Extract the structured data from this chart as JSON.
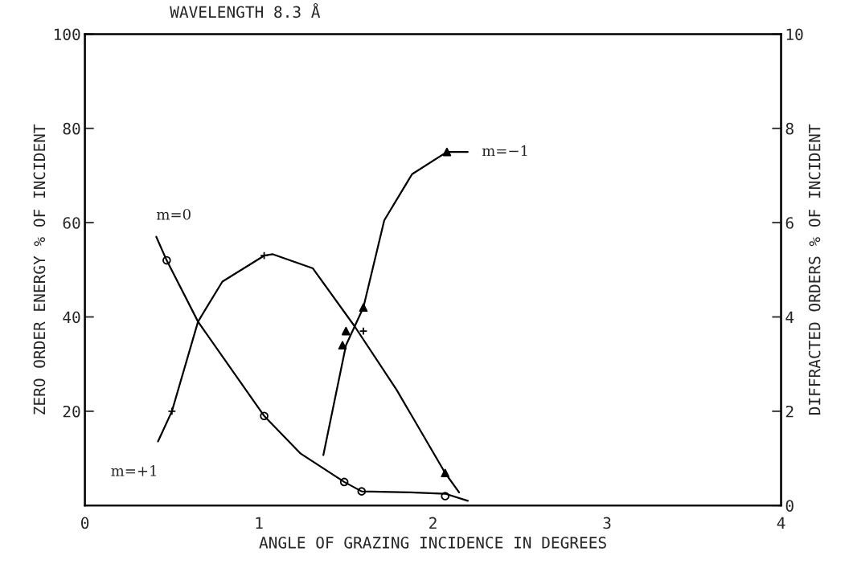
{
  "chart_data": {
    "type": "line",
    "title": "WAVELENGTH 8.3 Å",
    "xlabel": "ANGLE OF GRAZING INCIDENCE IN DEGREES",
    "ylabel": "ZERO ORDER ENERGY % OF INCIDENT",
    "y2label": "DIFFRACTED ORDERS % OF INCIDENT",
    "xlim": [
      0,
      4
    ],
    "xticks": [
      0,
      1,
      2,
      3,
      4
    ],
    "ylim": [
      0,
      100
    ],
    "yticks": [
      20,
      40,
      60,
      80,
      100
    ],
    "y2lim": [
      0,
      10
    ],
    "y2ticks": [
      0,
      2,
      4,
      6,
      8,
      10
    ],
    "grid": false,
    "legend": false,
    "line_style": "solid",
    "series": [
      {
        "name": "m=0",
        "marker": "none",
        "color": "#000000",
        "x": [
          0.41,
          0.47,
          0.65,
          1.03,
          1.24,
          1.49,
          1.59,
          1.87,
          2.07,
          2.2
        ],
        "values": [
          57,
          52,
          39,
          19,
          11,
          5,
          3,
          2.8,
          2.5,
          1
        ]
      },
      {
        "type": "scatter",
        "marker": "circle",
        "color": "#000000",
        "x": [
          0.47,
          1.03,
          1.49,
          1.59,
          2.07
        ],
        "values": [
          52,
          19,
          5,
          3,
          2
        ]
      },
      {
        "name": "m=+1",
        "axis": "y2",
        "marker": "none",
        "color": "#000000",
        "x": [
          0.42,
          0.5,
          0.65,
          0.79,
          1.03,
          1.08,
          1.31,
          1.55,
          1.79,
          2.07,
          2.15
        ],
        "values": [
          1.36,
          2.0,
          3.9,
          4.75,
          5.3,
          5.33,
          5.03,
          3.8,
          2.46,
          0.69,
          0.28
        ]
      },
      {
        "type": "scatter",
        "axis": "y2",
        "marker": "cross",
        "color": "#000000",
        "x": [
          0.5,
          1.03,
          1.6
        ],
        "values": [
          2.0,
          5.3,
          3.7
        ]
      },
      {
        "name": "m=−1",
        "axis": "y2",
        "marker": "none",
        "color": "#000000",
        "x": [
          1.37,
          1.5,
          1.55,
          1.6,
          1.72,
          1.88,
          2.08,
          2.2
        ],
        "values": [
          1.07,
          3.4,
          3.8,
          4.2,
          6.05,
          7.03,
          7.5,
          7.5
        ]
      },
      {
        "type": "scatter",
        "axis": "y2",
        "marker": "triangle",
        "color": "#000000",
        "x": [
          1.48,
          1.5,
          1.6,
          2.07,
          2.08
        ],
        "values": [
          3.4,
          3.7,
          4.2,
          0.69,
          7.5
        ]
      }
    ]
  }
}
